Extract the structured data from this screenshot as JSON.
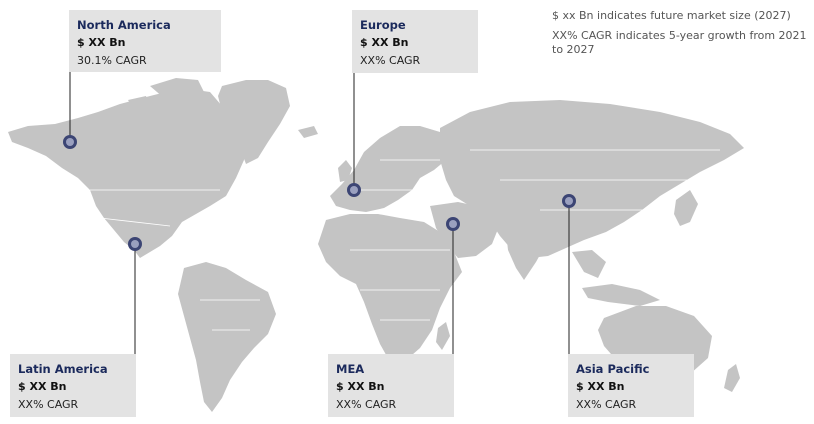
{
  "legend": {
    "line1": "$ xx Bn indicates future market size (2027)",
    "line2": "XX% CAGR indicates 5-year growth from 2021 to 2027"
  },
  "regions": {
    "north_america": {
      "name": "North America",
      "size": "$ XX Bn",
      "cagr": "30.1% CAGR"
    },
    "europe": {
      "name": "Europe",
      "size": "$ XX Bn",
      "cagr": "XX% CAGR"
    },
    "latin_america": {
      "name": "Latin America",
      "size": "$ XX Bn",
      "cagr": "XX% CAGR"
    },
    "mea": {
      "name": "MEA",
      "size": "$ XX Bn",
      "cagr": "XX% CAGR"
    },
    "asia_pacific": {
      "name": "Asia Pacific",
      "size": "$ XX Bn",
      "cagr": "XX% CAGR"
    }
  },
  "colors": {
    "land": "#c4c4c4",
    "callout_bg": "#e3e3e3",
    "region_title": "#1b2a5c",
    "marker": "#3c4574"
  }
}
